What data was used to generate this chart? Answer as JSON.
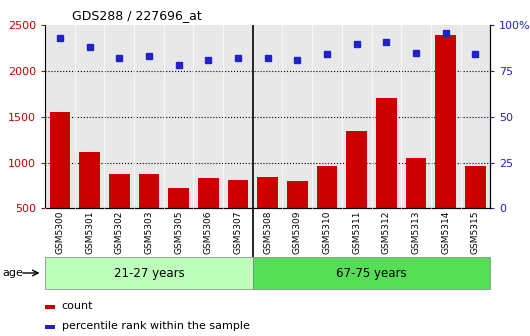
{
  "title": "GDS288 / 227696_at",
  "categories": [
    "GSM5300",
    "GSM5301",
    "GSM5302",
    "GSM5303",
    "GSM5305",
    "GSM5306",
    "GSM5307",
    "GSM5308",
    "GSM5309",
    "GSM5310",
    "GSM5311",
    "GSM5312",
    "GSM5313",
    "GSM5314",
    "GSM5315"
  ],
  "bar_values": [
    1550,
    1115,
    880,
    875,
    720,
    835,
    810,
    845,
    800,
    960,
    1340,
    1700,
    1050,
    2390,
    965
  ],
  "dot_values": [
    93,
    88,
    82,
    83,
    78,
    81,
    82,
    82,
    81,
    84,
    90,
    91,
    85,
    96,
    84
  ],
  "bar_color": "#cc0000",
  "dot_color": "#2222cc",
  "ylim_left": [
    500,
    2500
  ],
  "ylim_right": [
    0,
    100
  ],
  "yticks_left": [
    500,
    1000,
    1500,
    2000,
    2500
  ],
  "yticks_right": [
    0,
    25,
    50,
    75,
    100
  ],
  "group1_label": "21-27 years",
  "group2_label": "67-75 years",
  "group1_count": 7,
  "group2_count": 8,
  "age_label": "age",
  "legend_count": "count",
  "legend_pct": "percentile rank within the sample",
  "plot_bg": "#e8e8e8",
  "xband_bg": "#c8c8c8",
  "group1_color": "#bbffbb",
  "group2_color": "#55dd55",
  "grid_color": "#000000",
  "dot_scale": 2.916
}
